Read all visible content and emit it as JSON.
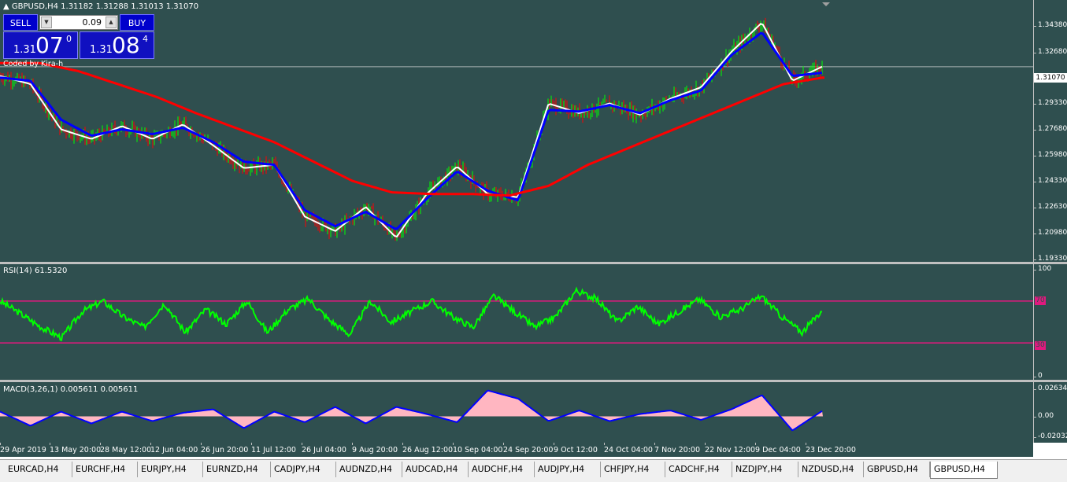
{
  "header": {
    "symbol": "GBPUSD,H4",
    "ohlc": "1.31182 1.31288 1.31013 1.31070",
    "collapse_icon": "triangle-up-icon"
  },
  "trade_panel": {
    "sell_label": "SELL",
    "buy_label": "BUY",
    "lot_value": "0.09",
    "sell_quote": {
      "small": "1.31",
      "big": "07",
      "sup": "0"
    },
    "buy_quote": {
      "small": "1.31",
      "big": "08",
      "sup": "4"
    },
    "icons": [
      "chevron-down-icon",
      "chevron-up-icon"
    ]
  },
  "coded_by": "Coded by Kira-h",
  "price_scale": {
    "labels": [
      "1.34380",
      "1.32680",
      "1.29330",
      "1.27680",
      "1.25980",
      "1.24330",
      "1.22630",
      "1.20980",
      "1.19330"
    ],
    "current": "1.31070"
  },
  "rsi": {
    "title": "RSI(14) 61.5320",
    "scale": [
      "100",
      "0"
    ],
    "levels": [
      "70",
      "30"
    ]
  },
  "macd": {
    "title": "MACD(3,26,1) 0.005611 0.005611",
    "scale": [
      "0.026341",
      "0.00",
      "-0.020327"
    ]
  },
  "time_axis": [
    "29 Apr 2019",
    "13 May 20:00",
    "28 May 12:00",
    "12 Jun 04:00",
    "26 Jun 20:00",
    "11 Jul 12:00",
    "26 Jul 04:00",
    "9 Aug 20:00",
    "26 Aug 12:00",
    "10 Sep 04:00",
    "24 Sep 20:00",
    "9 Oct 12:00",
    "24 Oct 04:00",
    "7 Nov 20:00",
    "22 Nov 12:00",
    "9 Dec 04:00",
    "23 Dec 20:00"
  ],
  "tabs": [
    {
      "label": "EURCAD,H4"
    },
    {
      "label": "EURCHF,H4"
    },
    {
      "label": "EURJPY,H4"
    },
    {
      "label": "EURNZD,H4"
    },
    {
      "label": "CADJPY,H4"
    },
    {
      "label": "AUDNZD,H4"
    },
    {
      "label": "AUDCAD,H4"
    },
    {
      "label": "AUDCHF,H4"
    },
    {
      "label": "AUDJPY,H4"
    },
    {
      "label": "CHFJPY,H4"
    },
    {
      "label": "CADCHF,H4"
    },
    {
      "label": "NZDJPY,H4"
    },
    {
      "label": "NZDUSD,H4"
    },
    {
      "label": "GBPUSD,H4"
    },
    {
      "label": "GBPUSD,H4",
      "active": true
    }
  ],
  "chart_data": {
    "type": "line",
    "symbol": "GBPUSD",
    "timeframe": "H4",
    "x": [
      "29 Apr 2019",
      "13 May 20:00",
      "28 May 12:00",
      "12 Jun 04:00",
      "26 Jun 20:00",
      "11 Jul 12:00",
      "26 Jul 04:00",
      "9 Aug 20:00",
      "26 Aug 12:00",
      "10 Sep 04:00",
      "24 Sep 20:00",
      "9 Oct 12:00",
      "24 Oct 04:00",
      "7 Nov 20:00",
      "22 Nov 12:00",
      "9 Dec 04:00",
      "23 Dec 20:00"
    ],
    "ylim": [
      1.19,
      1.352
    ],
    "price": [
      1.305,
      1.3,
      1.272,
      1.266,
      1.274,
      1.266,
      1.275,
      1.262,
      1.248,
      1.25,
      1.218,
      1.209,
      1.224,
      1.205,
      1.232,
      1.249,
      1.232,
      1.23,
      1.288,
      1.282,
      1.288,
      1.281,
      1.291,
      1.298,
      1.32,
      1.338,
      1.302,
      1.311
    ],
    "fast_ma": [
      1.304,
      1.302,
      1.278,
      1.268,
      1.272,
      1.269,
      1.273,
      1.264,
      1.252,
      1.25,
      1.222,
      1.212,
      1.221,
      1.21,
      1.229,
      1.246,
      1.234,
      1.228,
      1.284,
      1.283,
      1.287,
      1.282,
      1.29,
      1.296,
      1.318,
      1.332,
      1.305,
      1.307
    ],
    "slow_ma": [
      1.313,
      1.313,
      1.308,
      1.3,
      1.292,
      1.282,
      1.273,
      1.264,
      1.252,
      1.24,
      1.233,
      1.232,
      1.232,
      1.231,
      1.237,
      1.25,
      1.26,
      1.27,
      1.28,
      1.29,
      1.3,
      1.304
    ],
    "rsi_values": [
      70,
      58,
      45,
      35,
      60,
      70,
      55,
      45,
      68,
      40,
      62,
      48,
      70,
      40,
      62,
      72,
      52,
      38,
      70,
      50,
      60,
      70,
      55,
      45,
      75,
      60,
      45,
      55,
      80,
      72,
      50,
      65,
      48,
      60,
      72,
      55,
      62,
      75,
      55,
      40,
      62
    ],
    "rsi_levels": [
      70,
      30
    ],
    "macd_values": [
      0.004,
      -0.008,
      0.004,
      -0.006,
      0.004,
      -0.004,
      0.003,
      0.006,
      -0.01,
      0.004,
      -0.005,
      0.008,
      -0.006,
      0.008,
      0.002,
      -0.005,
      0.022,
      0.015,
      -0.004,
      0.005,
      -0.004,
      0.002,
      0.005,
      -0.003,
      0.006,
      0.018,
      -0.012,
      0.005
    ],
    "macd_ylim": [
      -0.020327,
      0.026341
    ],
    "colors": {
      "price_up": "#00ff00",
      "price_down": "#ff0000",
      "fast_ma": "#0000ff",
      "slow_ma": "#ff0000",
      "rsi": "#00ff00",
      "rsi_level": "#e0197e",
      "macd_hist": "#ffb6c1",
      "macd_line": "#0000ff",
      "background": "#2f4f4f"
    }
  }
}
